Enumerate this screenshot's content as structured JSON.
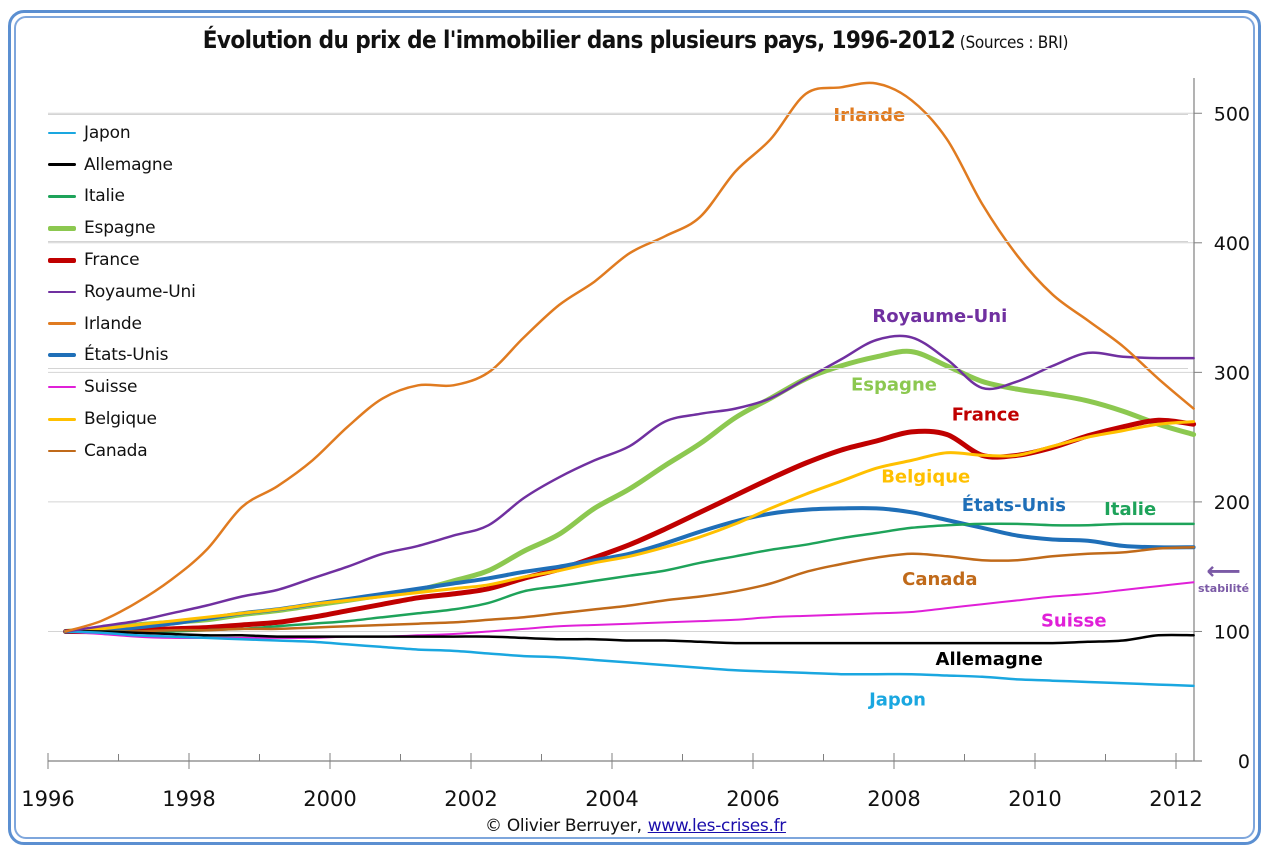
{
  "chart_data": {
    "type": "line",
    "title": "Évolution du prix de l'immobilier dans plusieurs pays, 1996-2012",
    "subtitle": "(Sources : BRI)",
    "xlabel": "",
    "ylabel": "",
    "xlim": [
      1996,
      2012.3
    ],
    "ylim": [
      0,
      530
    ],
    "x_ticks": [
      1996,
      1998,
      2000,
      2002,
      2004,
      2006,
      2008,
      2010,
      2012
    ],
    "x_tick_labels": [
      "1996",
      "1998",
      "2000",
      "2002",
      "2004",
      "2006",
      "2008",
      "2010",
      "2012"
    ],
    "y_ticks": [
      0,
      100,
      200,
      300,
      400,
      500
    ],
    "y_tick_labels": [
      "0",
      "100",
      "200",
      "300",
      "400",
      "500"
    ],
    "y_axis_side": "right",
    "grid": true,
    "legend_position": "top-left",
    "x": [
      1996.25,
      1996.75,
      1997.25,
      1997.75,
      1998.25,
      1998.75,
      1999.25,
      1999.75,
      2000.25,
      2000.75,
      2001.25,
      2001.75,
      2002.25,
      2002.75,
      2003.25,
      2003.75,
      2004.25,
      2004.75,
      2005.25,
      2005.75,
      2006.25,
      2006.75,
      2007.25,
      2007.75,
      2008.25,
      2008.75,
      2009.25,
      2009.75,
      2010.25,
      2010.75,
      2011.25,
      2011.75,
      2012.25
    ],
    "series": [
      {
        "name": "Japon",
        "color": "#1aa7e0",
        "width": 2.5,
        "values": [
          100,
          99,
          97,
          96,
          95,
          94,
          93,
          92,
          90,
          88,
          86,
          85,
          83,
          81,
          80,
          78,
          76,
          74,
          72,
          70,
          69,
          68,
          67,
          67,
          67,
          66,
          65,
          63,
          62,
          61,
          60,
          59,
          58
        ]
      },
      {
        "name": "Allemagne",
        "color": "#000000",
        "width": 2.5,
        "values": [
          100,
          100,
          99,
          98,
          97,
          97,
          96,
          96,
          96,
          96,
          96,
          96,
          96,
          95,
          94,
          94,
          93,
          93,
          92,
          91,
          91,
          91,
          91,
          91,
          91,
          91,
          91,
          91,
          91,
          92,
          93,
          97,
          97
        ]
      },
      {
        "name": "Italie",
        "color": "#1ea35a",
        "width": 2.5,
        "values": [
          100,
          100,
          100,
          100,
          101,
          102,
          104,
          106,
          108,
          111,
          114,
          117,
          122,
          131,
          135,
          139,
          143,
          147,
          153,
          158,
          163,
          167,
          172,
          176,
          180,
          182,
          183,
          183,
          182,
          182,
          183,
          183,
          183
        ]
      },
      {
        "name": "Espagne",
        "color": "#8cc850",
        "width": 5,
        "values": [
          100,
          102,
          105,
          107,
          109,
          113,
          116,
          120,
          124,
          128,
          132,
          139,
          147,
          162,
          175,
          195,
          210,
          228,
          245,
          265,
          280,
          295,
          305,
          312,
          316,
          305,
          293,
          287,
          283,
          278,
          270,
          260,
          252
        ]
      },
      {
        "name": "France",
        "color": "#c00000",
        "width": 5,
        "values": [
          100,
          100,
          101,
          102,
          103,
          105,
          107,
          111,
          116,
          121,
          126,
          129,
          133,
          141,
          148,
          157,
          167,
          179,
          192,
          205,
          218,
          230,
          240,
          247,
          254,
          252,
          236,
          236,
          242,
          251,
          258,
          263,
          260
        ]
      },
      {
        "name": "Royaume-Uni",
        "color": "#7030a0",
        "width": 2.5,
        "values": [
          100,
          104,
          108,
          114,
          120,
          127,
          132,
          141,
          150,
          160,
          166,
          174,
          182,
          203,
          219,
          232,
          243,
          262,
          268,
          272,
          280,
          295,
          310,
          325,
          327,
          310,
          288,
          293,
          305,
          315,
          312,
          311,
          311
        ]
      },
      {
        "name": "Irlande",
        "color": "#e07b20",
        "width": 2.5,
        "values": [
          100,
          108,
          122,
          140,
          163,
          196,
          212,
          232,
          258,
          280,
          290,
          290,
          300,
          327,
          352,
          370,
          392,
          405,
          420,
          455,
          480,
          515,
          520,
          523,
          510,
          480,
          430,
          390,
          360,
          340,
          320,
          295,
          272
        ]
      },
      {
        "name": "États-Unis",
        "color": "#1f6fb8",
        "width": 4,
        "values": [
          100,
          101,
          103,
          106,
          110,
          114,
          117,
          121,
          125,
          129,
          133,
          137,
          141,
          146,
          150,
          155,
          160,
          168,
          177,
          185,
          191,
          194,
          195,
          195,
          192,
          186,
          180,
          174,
          171,
          170,
          166,
          165,
          165
        ]
      },
      {
        "name": "Suisse",
        "color": "#e020d8",
        "width": 2,
        "values": [
          100,
          98,
          96,
          95,
          95,
          95,
          95,
          95,
          96,
          96,
          97,
          98,
          100,
          102,
          104,
          105,
          106,
          107,
          108,
          109,
          111,
          112,
          113,
          114,
          115,
          118,
          121,
          124,
          127,
          129,
          132,
          135,
          138
        ]
      },
      {
        "name": "Belgique",
        "color": "#ffc000",
        "width": 3,
        "values": [
          100,
          102,
          105,
          108,
          111,
          114,
          117,
          121,
          124,
          127,
          130,
          133,
          136,
          142,
          147,
          153,
          158,
          165,
          173,
          183,
          195,
          206,
          216,
          226,
          232,
          238,
          236,
          236,
          243,
          250,
          255,
          260,
          262
        ]
      },
      {
        "name": "Canada",
        "color": "#c06a1a",
        "width": 2.5,
        "values": [
          100,
          100,
          100,
          101,
          101,
          102,
          102,
          103,
          104,
          105,
          106,
          107,
          109,
          111,
          114,
          117,
          120,
          124,
          127,
          131,
          137,
          146,
          152,
          157,
          160,
          158,
          155,
          155,
          158,
          160,
          161,
          164,
          165
        ]
      }
    ],
    "annotations": [
      {
        "text": "Irlande",
        "series": "Irlande",
        "x": 2007.65,
        "y": 494
      },
      {
        "text": "Royaume-Uni",
        "series": "Royaume-Uni",
        "x": 2008.65,
        "y": 339
      },
      {
        "text": "Espagne",
        "series": "Espagne",
        "x": 2008.0,
        "y": 286
      },
      {
        "text": "France",
        "series": "France",
        "x": 2009.3,
        "y": 263
      },
      {
        "text": "Belgique",
        "series": "Belgique",
        "x": 2008.45,
        "y": 215
      },
      {
        "text": "États-Unis",
        "series": "États-Unis",
        "x": 2009.7,
        "y": 193
      },
      {
        "text": "Italie",
        "series": "Italie",
        "x": 2011.35,
        "y": 190
      },
      {
        "text": "Canada",
        "series": "Canada",
        "x": 2008.65,
        "y": 136
      },
      {
        "text": "Suisse",
        "series": "Suisse",
        "x": 2010.55,
        "y": 104
      },
      {
        "text": "Allemagne",
        "series": "Allemagne",
        "x": 2009.35,
        "y": 74
      },
      {
        "text": "Japon",
        "series": "Japon",
        "x": 2008.05,
        "y": 43
      }
    ],
    "side_note": {
      "text": "stabilité",
      "value": 100
    }
  },
  "footer": {
    "credit": "© Olivier Berruyer,",
    "link": "www.les-crises.fr"
  },
  "stability_note": {
    "arrow": "⟵",
    "label": "stabilité"
  }
}
